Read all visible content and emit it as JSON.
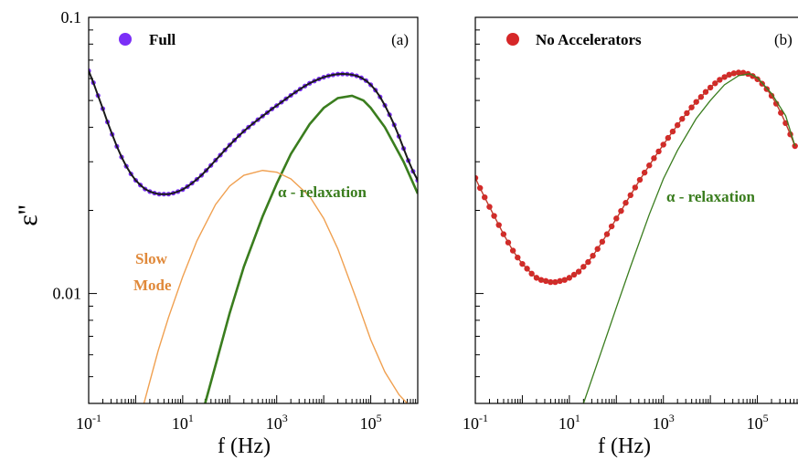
{
  "ylabel": "ε''",
  "colors": {
    "full_points": "#7b2ff7",
    "no_acc_points": "#d62728",
    "fit_line": "#1a1a1a",
    "alpha": "#3a7d1e",
    "slow": "#f0a050",
    "axis": "#000000"
  },
  "chart_data": [
    {
      "type": "scatter",
      "panel_tag": "(a)",
      "xlabel": "f (Hz)",
      "ylabel": "ε''",
      "x_scale": "log",
      "y_scale": "log",
      "xlim": [
        0.1,
        1000000
      ],
      "ylim": [
        0.004,
        0.1
      ],
      "x_ticks": [
        0.1,
        10,
        1000,
        100000
      ],
      "x_tick_labels": [
        [
          "10",
          "-1"
        ],
        [
          "10",
          "1"
        ],
        [
          "10",
          "3"
        ],
        [
          "10",
          "5"
        ]
      ],
      "y_ticks": [
        0.01,
        0.1
      ],
      "y_tick_labels": [
        "0.01",
        "0.1"
      ],
      "legend": {
        "label": "Full",
        "position": "top-left"
      },
      "annotations": [
        {
          "text": "α - relaxation",
          "color_key": "alpha"
        },
        {
          "text": "Slow",
          "color_key": "slow"
        },
        {
          "text": "Mode",
          "color_key": "slow"
        }
      ],
      "series": [
        {
          "name": "Full",
          "role": "points",
          "x": [
            0.1,
            0.126,
            0.158,
            0.2,
            0.251,
            0.316,
            0.398,
            0.501,
            0.631,
            0.794,
            1,
            1.26,
            1.58,
            2,
            2.51,
            3.16,
            3.98,
            5.01,
            6.31,
            7.94,
            10,
            12.6,
            15.8,
            20,
            25.1,
            31.6,
            39.8,
            50.1,
            63.1,
            79.4,
            100,
            126,
            158,
            200,
            251,
            316,
            398,
            501,
            631,
            794,
            1000,
            1260,
            1580,
            2000,
            2510,
            3160,
            3980,
            5010,
            6310,
            7940,
            10000,
            12600,
            15800,
            20000,
            25100,
            31600,
            39800,
            50100,
            63100,
            79400,
            100000,
            126000,
            158000,
            200000,
            251000,
            316000,
            398000,
            501000,
            631000,
            794000,
            1000000
          ],
          "y": [
            0.064,
            0.058,
            0.0521,
            0.0467,
            0.0418,
            0.0377,
            0.0341,
            0.0312,
            0.0289,
            0.0271,
            0.0257,
            0.0247,
            0.0239,
            0.0234,
            0.0231,
            0.0229,
            0.0229,
            0.0229,
            0.0231,
            0.0234,
            0.0238,
            0.0244,
            0.0251,
            0.0259,
            0.0268,
            0.0279,
            0.0291,
            0.0304,
            0.0317,
            0.0331,
            0.0345,
            0.0359,
            0.0373,
            0.0387,
            0.04,
            0.0413,
            0.0426,
            0.0439,
            0.0452,
            0.0466,
            0.0479,
            0.0493,
            0.0507,
            0.0522,
            0.0536,
            0.055,
            0.0564,
            0.0577,
            0.0588,
            0.0598,
            0.0607,
            0.0614,
            0.0619,
            0.0623,
            0.0624,
            0.0623,
            0.062,
            0.0614,
            0.0604,
            0.059,
            0.057,
            0.0545,
            0.0515,
            0.048,
            0.0444,
            0.0408,
            0.0371,
            0.0335,
            0.0303,
            0.0277,
            0.0257
          ]
        },
        {
          "name": "Full fit",
          "role": "fit",
          "x": [
            0.1,
            0.126,
            0.158,
            0.2,
            0.251,
            0.316,
            0.398,
            0.501,
            0.631,
            0.794,
            1,
            1.26,
            1.58,
            2,
            2.51,
            3.16,
            3.98,
            5.01,
            6.31,
            7.94,
            10,
            12.6,
            15.8,
            20,
            25.1,
            31.6,
            39.8,
            50.1,
            63.1,
            79.4,
            100,
            126,
            158,
            200,
            251,
            316,
            398,
            501,
            631,
            794,
            1000,
            1260,
            1580,
            2000,
            2510,
            3160,
            3980,
            5010,
            6310,
            7940,
            10000,
            12600,
            15800,
            20000,
            25100,
            31600,
            39800,
            50100,
            63100,
            79400,
            100000,
            126000,
            158000,
            200000,
            251000,
            316000,
            398000,
            501000,
            631000,
            794000,
            1000000
          ],
          "y": [
            0.064,
            0.058,
            0.0521,
            0.0467,
            0.0418,
            0.0377,
            0.0341,
            0.0312,
            0.0289,
            0.0271,
            0.0257,
            0.0247,
            0.0239,
            0.0234,
            0.0231,
            0.0229,
            0.0229,
            0.0229,
            0.0231,
            0.0234,
            0.0238,
            0.0244,
            0.0251,
            0.0259,
            0.0268,
            0.0279,
            0.0291,
            0.0304,
            0.0317,
            0.0331,
            0.0345,
            0.0359,
            0.0373,
            0.0387,
            0.04,
            0.0413,
            0.0426,
            0.0439,
            0.0452,
            0.0466,
            0.0479,
            0.0493,
            0.0507,
            0.0522,
            0.0536,
            0.055,
            0.0564,
            0.0577,
            0.0588,
            0.0598,
            0.0607,
            0.0614,
            0.0619,
            0.0623,
            0.0624,
            0.0623,
            0.062,
            0.0614,
            0.0604,
            0.059,
            0.057,
            0.0545,
            0.0515,
            0.048,
            0.0444,
            0.0408,
            0.0371,
            0.0335,
            0.0303,
            0.0277,
            0.0257
          ]
        },
        {
          "name": "α - relaxation",
          "role": "component",
          "color_key": "alpha",
          "x": [
            30,
            50,
            100,
            200,
            500,
            1000,
            2000,
            5000,
            10000,
            20000,
            40000,
            70000,
            100000,
            200000,
            500000,
            1000000
          ],
          "y": [
            0.004,
            0.0055,
            0.0085,
            0.0125,
            0.019,
            0.025,
            0.032,
            0.041,
            0.047,
            0.051,
            0.052,
            0.05,
            0.047,
            0.04,
            0.03,
            0.023
          ]
        },
        {
          "name": "Slow Mode",
          "role": "component",
          "color_key": "slow",
          "x": [
            1.5,
            2,
            3,
            5,
            10,
            20,
            50,
            100,
            200,
            500,
            1000,
            2000,
            5000,
            10000,
            20000,
            50000,
            100000,
            200000,
            400000,
            600000
          ],
          "y": [
            0.004,
            0.0048,
            0.0062,
            0.0082,
            0.0115,
            0.0155,
            0.021,
            0.0245,
            0.0268,
            0.0279,
            0.0275,
            0.026,
            0.0225,
            0.0187,
            0.0145,
            0.0095,
            0.0068,
            0.0052,
            0.0043,
            0.004
          ]
        }
      ]
    },
    {
      "type": "scatter",
      "panel_tag": "(b)",
      "xlabel": "f (Hz)",
      "x_scale": "log",
      "y_scale": "log",
      "xlim": [
        0.1,
        1000000
      ],
      "ylim": [
        0.004,
        0.1
      ],
      "x_ticks": [
        0.1,
        10,
        1000,
        100000
      ],
      "x_tick_labels": [
        [
          "10",
          "-1"
        ],
        [
          "10",
          "1"
        ],
        [
          "10",
          "3"
        ],
        [
          "10",
          "5"
        ]
      ],
      "legend": {
        "label": "No Accelerators",
        "position": "top-left"
      },
      "annotations": [
        {
          "text": "α - relaxation",
          "color_key": "alpha"
        }
      ],
      "series": [
        {
          "name": "No Accelerators",
          "role": "points",
          "x": [
            0.1,
            0.126,
            0.158,
            0.2,
            0.251,
            0.316,
            0.398,
            0.501,
            0.631,
            0.794,
            1,
            1.26,
            1.58,
            2,
            2.51,
            3.16,
            3.98,
            5.01,
            6.31,
            7.94,
            10,
            12.6,
            15.8,
            20,
            25.1,
            31.6,
            39.8,
            50.1,
            63.1,
            79.4,
            100,
            126,
            158,
            200,
            251,
            316,
            398,
            501,
            631,
            794,
            1000,
            1260,
            1580,
            2000,
            2510,
            3160,
            3980,
            5010,
            6310,
            7940,
            10000,
            12600,
            15800,
            20000,
            25100,
            31600,
            39800,
            50100,
            63100,
            79400,
            100000,
            126000,
            158000,
            200000,
            251000,
            316000,
            398000,
            501000,
            631000
          ],
          "y": [
            0.0262,
            0.0241,
            0.0223,
            0.0206,
            0.0191,
            0.0177,
            0.0164,
            0.0153,
            0.0143,
            0.0135,
            0.0128,
            0.0123,
            0.0118,
            0.0114,
            0.0112,
            0.0111,
            0.011,
            0.011,
            0.0111,
            0.0112,
            0.0114,
            0.0117,
            0.012,
            0.0125,
            0.013,
            0.0137,
            0.0145,
            0.0154,
            0.0164,
            0.0175,
            0.0187,
            0.0199,
            0.0213,
            0.0227,
            0.0242,
            0.0258,
            0.0274,
            0.0291,
            0.0309,
            0.0327,
            0.0346,
            0.0366,
            0.0386,
            0.0407,
            0.0429,
            0.045,
            0.0472,
            0.0494,
            0.0515,
            0.0537,
            0.0557,
            0.0577,
            0.0594,
            0.0608,
            0.062,
            0.0627,
            0.0631,
            0.063,
            0.0624,
            0.0613,
            0.0597,
            0.0575,
            0.055,
            0.052,
            0.0487,
            0.0451,
            0.0414,
            0.0377,
            0.0342
          ]
        },
        {
          "name": "No Accelerators fit",
          "role": "fit",
          "x": [
            0.1,
            0.126,
            0.158,
            0.2,
            0.251,
            0.316,
            0.398,
            0.501,
            0.631,
            0.794,
            1,
            1.26,
            1.58,
            2,
            2.51,
            3.16,
            3.98,
            5.01,
            6.31,
            7.94,
            10,
            12.6,
            15.8,
            20,
            25.1,
            31.6,
            39.8,
            50.1,
            63.1,
            79.4,
            100,
            126,
            158,
            200,
            251,
            316,
            398,
            501,
            631,
            794,
            1000,
            1260,
            1580,
            2000,
            2510,
            3160,
            3980,
            5010,
            6310,
            7940,
            10000,
            12600,
            15800,
            20000,
            25100,
            31600,
            39800,
            50100,
            63100,
            79400,
            100000,
            126000,
            158000,
            200000,
            251000,
            316000,
            398000,
            501000,
            631000
          ],
          "y": [
            0.0262,
            0.0241,
            0.0223,
            0.0206,
            0.0191,
            0.0177,
            0.0164,
            0.0153,
            0.0143,
            0.0135,
            0.0128,
            0.0123,
            0.0118,
            0.0114,
            0.0112,
            0.0111,
            0.011,
            0.011,
            0.0111,
            0.0112,
            0.0114,
            0.0117,
            0.012,
            0.0125,
            0.013,
            0.0137,
            0.0145,
            0.0154,
            0.0164,
            0.0175,
            0.0187,
            0.0199,
            0.0213,
            0.0227,
            0.0242,
            0.0258,
            0.0274,
            0.0291,
            0.0309,
            0.0327,
            0.0346,
            0.0366,
            0.0386,
            0.0407,
            0.0429,
            0.045,
            0.0472,
            0.0494,
            0.0515,
            0.0537,
            0.0557,
            0.0577,
            0.0594,
            0.0608,
            0.062,
            0.0627,
            0.0631,
            0.063,
            0.0624,
            0.0613,
            0.0597,
            0.0575,
            0.055,
            0.052,
            0.0487,
            0.0451,
            0.0414,
            0.0377,
            0.0342
          ]
        },
        {
          "name": "α - relaxation",
          "role": "component",
          "color_key": "alpha",
          "x": [
            20,
            50,
            100,
            200,
            500,
            1000,
            2000,
            5000,
            10000,
            20000,
            40000,
            70000,
            100000,
            200000,
            400000,
            631000
          ],
          "y": [
            0.004,
            0.0063,
            0.0089,
            0.0125,
            0.0193,
            0.026,
            0.033,
            0.043,
            0.05,
            0.057,
            0.0615,
            0.0625,
            0.0605,
            0.053,
            0.044,
            0.0342
          ]
        }
      ]
    }
  ]
}
